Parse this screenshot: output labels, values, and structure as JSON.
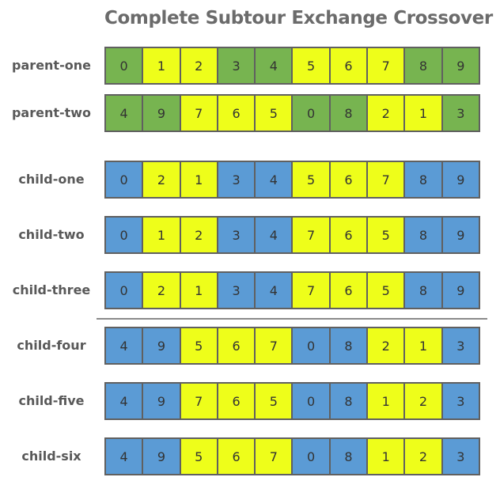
{
  "title": "Complete Subtour Exchange Crossover",
  "colors": {
    "green": "#77b450",
    "yellow": "#eefe1a",
    "blue": "#5b9bd5"
  },
  "rows": [
    {
      "label": "parent-one",
      "cells": [
        {
          "v": "0",
          "c": "green"
        },
        {
          "v": "1",
          "c": "yellow"
        },
        {
          "v": "2",
          "c": "yellow"
        },
        {
          "v": "3",
          "c": "green"
        },
        {
          "v": "4",
          "c": "green"
        },
        {
          "v": "5",
          "c": "yellow"
        },
        {
          "v": "6",
          "c": "yellow"
        },
        {
          "v": "7",
          "c": "yellow"
        },
        {
          "v": "8",
          "c": "green"
        },
        {
          "v": "9",
          "c": "green"
        }
      ]
    },
    {
      "label": "parent-two",
      "cells": [
        {
          "v": "4",
          "c": "green"
        },
        {
          "v": "9",
          "c": "green"
        },
        {
          "v": "7",
          "c": "yellow"
        },
        {
          "v": "6",
          "c": "yellow"
        },
        {
          "v": "5",
          "c": "yellow"
        },
        {
          "v": "0",
          "c": "green"
        },
        {
          "v": "8",
          "c": "green"
        },
        {
          "v": "2",
          "c": "yellow"
        },
        {
          "v": "1",
          "c": "yellow"
        },
        {
          "v": "3",
          "c": "green"
        }
      ]
    },
    {
      "label": "child-one",
      "cells": [
        {
          "v": "0",
          "c": "blue"
        },
        {
          "v": "2",
          "c": "yellow"
        },
        {
          "v": "1",
          "c": "yellow"
        },
        {
          "v": "3",
          "c": "blue"
        },
        {
          "v": "4",
          "c": "blue"
        },
        {
          "v": "5",
          "c": "yellow"
        },
        {
          "v": "6",
          "c": "yellow"
        },
        {
          "v": "7",
          "c": "yellow"
        },
        {
          "v": "8",
          "c": "blue"
        },
        {
          "v": "9",
          "c": "blue"
        }
      ]
    },
    {
      "label": "child-two",
      "cells": [
        {
          "v": "0",
          "c": "blue"
        },
        {
          "v": "1",
          "c": "yellow"
        },
        {
          "v": "2",
          "c": "yellow"
        },
        {
          "v": "3",
          "c": "blue"
        },
        {
          "v": "4",
          "c": "blue"
        },
        {
          "v": "7",
          "c": "yellow"
        },
        {
          "v": "6",
          "c": "yellow"
        },
        {
          "v": "5",
          "c": "yellow"
        },
        {
          "v": "8",
          "c": "blue"
        },
        {
          "v": "9",
          "c": "blue"
        }
      ]
    },
    {
      "label": "child-three",
      "cells": [
        {
          "v": "0",
          "c": "blue"
        },
        {
          "v": "2",
          "c": "yellow"
        },
        {
          "v": "1",
          "c": "yellow"
        },
        {
          "v": "3",
          "c": "blue"
        },
        {
          "v": "4",
          "c": "blue"
        },
        {
          "v": "7",
          "c": "yellow"
        },
        {
          "v": "6",
          "c": "yellow"
        },
        {
          "v": "5",
          "c": "yellow"
        },
        {
          "v": "8",
          "c": "blue"
        },
        {
          "v": "9",
          "c": "blue"
        }
      ]
    },
    {
      "label": "child-four",
      "cells": [
        {
          "v": "4",
          "c": "blue"
        },
        {
          "v": "9",
          "c": "blue"
        },
        {
          "v": "5",
          "c": "yellow"
        },
        {
          "v": "6",
          "c": "yellow"
        },
        {
          "v": "7",
          "c": "yellow"
        },
        {
          "v": "0",
          "c": "blue"
        },
        {
          "v": "8",
          "c": "blue"
        },
        {
          "v": "2",
          "c": "yellow"
        },
        {
          "v": "1",
          "c": "yellow"
        },
        {
          "v": "3",
          "c": "blue"
        }
      ]
    },
    {
      "label": "child-five",
      "cells": [
        {
          "v": "4",
          "c": "blue"
        },
        {
          "v": "9",
          "c": "blue"
        },
        {
          "v": "7",
          "c": "yellow"
        },
        {
          "v": "6",
          "c": "yellow"
        },
        {
          "v": "5",
          "c": "yellow"
        },
        {
          "v": "0",
          "c": "blue"
        },
        {
          "v": "8",
          "c": "blue"
        },
        {
          "v": "1",
          "c": "yellow"
        },
        {
          "v": "2",
          "c": "yellow"
        },
        {
          "v": "3",
          "c": "blue"
        }
      ]
    },
    {
      "label": "child-six",
      "cells": [
        {
          "v": "4",
          "c": "blue"
        },
        {
          "v": "9",
          "c": "blue"
        },
        {
          "v": "5",
          "c": "yellow"
        },
        {
          "v": "6",
          "c": "yellow"
        },
        {
          "v": "7",
          "c": "yellow"
        },
        {
          "v": "0",
          "c": "blue"
        },
        {
          "v": "8",
          "c": "blue"
        },
        {
          "v": "1",
          "c": "yellow"
        },
        {
          "v": "2",
          "c": "yellow"
        },
        {
          "v": "3",
          "c": "blue"
        }
      ]
    }
  ]
}
